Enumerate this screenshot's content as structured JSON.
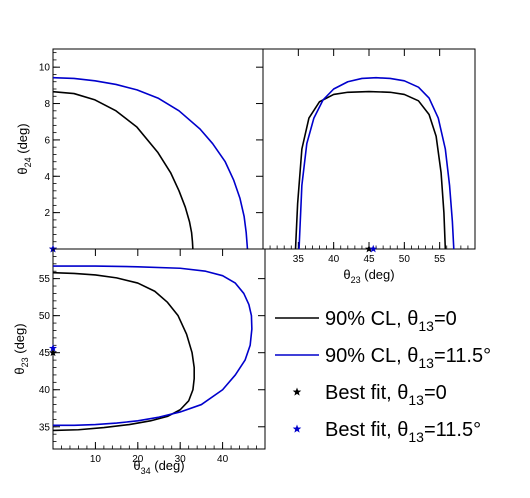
{
  "colors": {
    "black": "#000000",
    "blue": "#0000cc"
  },
  "chart_data": [
    {
      "id": "p24",
      "type": "line",
      "xlim": [
        0,
        50
      ],
      "ylim": [
        0,
        11
      ],
      "xticks": [],
      "yticks": [
        2,
        4,
        6,
        8,
        10
      ],
      "ylabel": {
        "main": "θ",
        "sub": "24",
        "post": " (deg)"
      },
      "series": [
        {
          "color": "#000000",
          "x": [
            0,
            5,
            10,
            15,
            20,
            25,
            28,
            30,
            31.5,
            32.5,
            33,
            33.2,
            33.3
          ],
          "y": [
            8.65,
            8.55,
            8.2,
            7.6,
            6.7,
            5.3,
            4.2,
            3.2,
            2.3,
            1.5,
            0.9,
            0.4,
            0
          ]
        },
        {
          "color": "#0000cc",
          "x": [
            0,
            5,
            10,
            15,
            20,
            25,
            30,
            35,
            38,
            41,
            43,
            44.5,
            45.5,
            46,
            46.3
          ],
          "y": [
            9.42,
            9.38,
            9.25,
            9.05,
            8.75,
            8.3,
            7.6,
            6.6,
            5.8,
            4.8,
            3.8,
            2.8,
            1.8,
            0.9,
            0
          ]
        }
      ],
      "points": [
        {
          "x": 0,
          "y": 0,
          "color": "#000000"
        },
        {
          "x": 0,
          "y": 0,
          "color": "#0000cc"
        }
      ]
    },
    {
      "id": "p23",
      "type": "line",
      "xlim": [
        30,
        60
      ],
      "ylim": [
        0,
        11
      ],
      "xticks": [
        35,
        40,
        45,
        50,
        55
      ],
      "yticks": [],
      "xlabel": {
        "main": "θ",
        "sub": "23",
        "post": " (deg)"
      },
      "series": [
        {
          "color": "#000000",
          "x": [
            34.6,
            34.9,
            35.5,
            36.5,
            38,
            40,
            42,
            45,
            48,
            50,
            52,
            53.5,
            54.5,
            55.2,
            55.6,
            55.8
          ],
          "y": [
            0,
            2.5,
            5.5,
            7.2,
            8.1,
            8.5,
            8.62,
            8.66,
            8.62,
            8.5,
            8.15,
            7.4,
            6.2,
            4.2,
            2,
            0
          ]
        },
        {
          "color": "#0000cc",
          "x": [
            35.1,
            35.5,
            36.2,
            37.2,
            38.5,
            40,
            42,
            44,
            46,
            48,
            50,
            52,
            53.5,
            54.8,
            55.8,
            56.4,
            56.8,
            57
          ],
          "y": [
            0,
            3.5,
            5.8,
            7.2,
            8.2,
            8.8,
            9.2,
            9.38,
            9.42,
            9.38,
            9.25,
            8.9,
            8.3,
            7.2,
            5.5,
            3.5,
            1.5,
            0
          ]
        }
      ],
      "points": [
        {
          "x": 45,
          "y": 0,
          "color": "#000000"
        },
        {
          "x": 45.6,
          "y": 0,
          "color": "#0000cc"
        }
      ]
    },
    {
      "id": "p34",
      "type": "line",
      "xlim": [
        0,
        50
      ],
      "ylim": [
        32,
        59
      ],
      "xticks": [
        10,
        20,
        30,
        40
      ],
      "yticks": [
        35,
        40,
        45,
        50,
        55
      ],
      "xlabel": {
        "main": "θ",
        "sub": "34",
        "post": " (deg)"
      },
      "ylabel": {
        "main": "θ",
        "sub": "23",
        "post": " (deg)"
      },
      "series": [
        {
          "color": "#000000",
          "x": [
            0,
            5,
            10,
            15,
            20,
            24,
            27,
            29.5,
            31.5,
            32.8,
            33.3,
            33.3,
            33,
            32,
            30,
            27,
            23,
            18,
            12,
            6,
            0
          ],
          "y": [
            55.8,
            55.7,
            55.5,
            55.1,
            54.4,
            53.3,
            51.8,
            50,
            47.5,
            45,
            43,
            41.5,
            40,
            38.5,
            37.3,
            36.4,
            35.8,
            35.3,
            34.9,
            34.6,
            34.5
          ]
        },
        {
          "color": "#0000cc",
          "x": [
            0,
            5,
            10,
            20,
            30,
            36,
            40,
            43,
            45,
            46.2,
            46.8,
            46.9,
            46.5,
            45.3,
            43,
            40,
            35,
            30,
            25,
            20,
            15,
            10,
            5,
            0
          ],
          "y": [
            56.7,
            56.7,
            56.7,
            56.6,
            56.4,
            56,
            55.4,
            54.4,
            53,
            51.5,
            50,
            48.2,
            46,
            44,
            42,
            40,
            38,
            37,
            36.3,
            35.8,
            35.5,
            35.3,
            35.2,
            35.2
          ]
        }
      ],
      "points": [
        {
          "x": 0,
          "y": 45,
          "color": "#000000"
        },
        {
          "x": 0,
          "y": 45.6,
          "color": "#0000cc"
        }
      ]
    }
  ],
  "legend": [
    {
      "kind": "line",
      "color": "#000000",
      "main": "90% CL, θ",
      "sub": "13",
      "post": "=0"
    },
    {
      "kind": "line",
      "color": "#0000cc",
      "main": "90% CL, θ",
      "sub": "13",
      "post": "=11.5°"
    },
    {
      "kind": "marker",
      "color": "#000000",
      "main": "Best fit, θ",
      "sub": "13",
      "post": "=0"
    },
    {
      "kind": "marker",
      "color": "#0000cc",
      "main": "Best fit, θ",
      "sub": "13",
      "post": "=11.5°"
    }
  ]
}
